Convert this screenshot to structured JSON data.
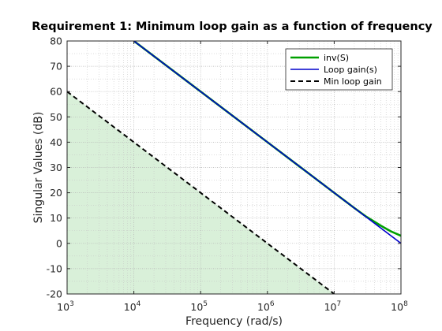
{
  "chart_data": {
    "type": "line",
    "title": "Requirement 1: Minimum loop gain as a function of frequency",
    "xlabel": "Frequency (rad/s)",
    "ylabel": "Singular Values (dB)",
    "xscale": "log",
    "xlim": [
      1000,
      100000000
    ],
    "ylim": [
      -20,
      80
    ],
    "xticks": [
      1000,
      10000,
      100000,
      1000000,
      10000000,
      100000000
    ],
    "xtick_labels": [
      {
        "base": "10",
        "exp": "3"
      },
      {
        "base": "10",
        "exp": "4"
      },
      {
        "base": "10",
        "exp": "5"
      },
      {
        "base": "10",
        "exp": "6"
      },
      {
        "base": "10",
        "exp": "7"
      },
      {
        "base": "10",
        "exp": "8"
      }
    ],
    "yticks": [
      -20,
      -10,
      0,
      10,
      20,
      30,
      40,
      50,
      60,
      70,
      80
    ],
    "ytick_labels": [
      "-20",
      "-10",
      "0",
      "10",
      "20",
      "30",
      "40",
      "50",
      "60",
      "70",
      "80"
    ],
    "grid": true,
    "minor_grid": true,
    "legend_position": "top-right",
    "shaded_region": {
      "color": "#d9f0d9",
      "x": [
        1000,
        10000000
      ],
      "y": [
        60,
        -20
      ]
    },
    "series": [
      {
        "name": "inv(S)",
        "color": "#00a000",
        "style": "solid",
        "x": [
          10000,
          100000,
          1000000,
          10000000,
          20000000,
          30000000,
          50000000,
          70000000,
          100000000
        ],
        "y": [
          80,
          60,
          40,
          20,
          14,
          10.6,
          7,
          4.8,
          3
        ]
      },
      {
        "name": "Loop gain(s)",
        "color": "#0000cc",
        "style": "solid",
        "x": [
          10000,
          100000,
          1000000,
          10000000,
          100000000
        ],
        "y": [
          80,
          60,
          40,
          20,
          0
        ]
      },
      {
        "name": "Min loop gain",
        "color": "#000000",
        "style": "dashed",
        "x": [
          1000,
          10000,
          100000,
          1000000,
          10000000
        ],
        "y": [
          60,
          40,
          20,
          0,
          -20
        ]
      }
    ]
  }
}
